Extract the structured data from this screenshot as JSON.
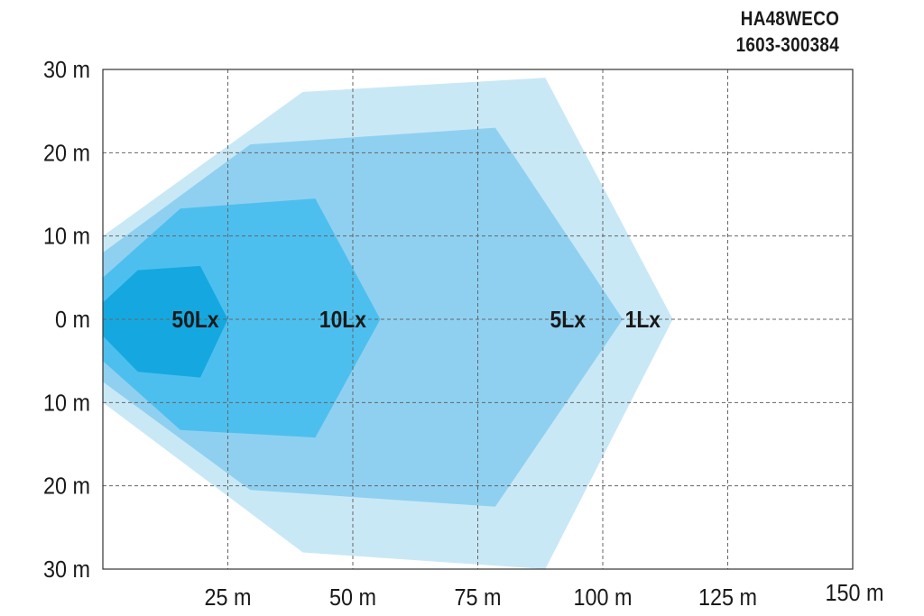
{
  "header": {
    "model": "HA48WECO",
    "serial": "1603-300384"
  },
  "chart_data": {
    "type": "area",
    "title": "",
    "xlabel": "",
    "ylabel": "",
    "xlim": [
      0,
      150
    ],
    "ylim": [
      -30,
      30
    ],
    "grid": true,
    "x_ticks": [
      {
        "value": 25,
        "label": "25 m"
      },
      {
        "value": 50,
        "label": "50 m"
      },
      {
        "value": 75,
        "label": "75 m"
      },
      {
        "value": 100,
        "label": "100 m"
      },
      {
        "value": 125,
        "label": "125 m"
      },
      {
        "value": 150,
        "label": "150 m"
      }
    ],
    "y_ticks": [
      {
        "value": 30,
        "label": "30 m"
      },
      {
        "value": 20,
        "label": "20 m"
      },
      {
        "value": 10,
        "label": "10 m"
      },
      {
        "value": 0,
        "label": "0 m"
      },
      {
        "value": -10,
        "label": "10 m"
      },
      {
        "value": -20,
        "label": "20 m"
      },
      {
        "value": -30,
        "label": "30 m"
      }
    ],
    "series": [
      {
        "name": "1Lx",
        "color": "#c9e8f6",
        "label_at": [
          108,
          0
        ],
        "outline": [
          [
            0,
            10
          ],
          [
            40,
            27.3
          ],
          [
            88.5,
            29
          ],
          [
            114,
            0
          ],
          [
            88.5,
            -30
          ],
          [
            40,
            -28
          ],
          [
            0,
            -10
          ]
        ]
      },
      {
        "name": "5Lx",
        "color": "#8fd0f0",
        "label_at": [
          93,
          0
        ],
        "outline": [
          [
            0,
            8
          ],
          [
            29.5,
            21
          ],
          [
            78.5,
            23
          ],
          [
            104,
            0
          ],
          [
            78.5,
            -22.5
          ],
          [
            29.5,
            -20.5
          ],
          [
            0,
            -7.5
          ]
        ]
      },
      {
        "name": "10Lx",
        "color": "#4dbfee",
        "label_at": [
          48,
          0
        ],
        "outline": [
          [
            0,
            5
          ],
          [
            15.5,
            13.3
          ],
          [
            42.5,
            14.5
          ],
          [
            55.5,
            0
          ],
          [
            42.5,
            -14.2
          ],
          [
            15.5,
            -13.3
          ],
          [
            0,
            -5
          ]
        ]
      },
      {
        "name": "50Lx",
        "color": "#15a8e0",
        "label_at": [
          18.5,
          0
        ],
        "outline": [
          [
            0,
            2
          ],
          [
            7,
            5.9
          ],
          [
            19.5,
            6.4
          ],
          [
            25,
            0
          ],
          [
            19.5,
            -7
          ],
          [
            7,
            -6.3
          ],
          [
            0,
            -2
          ]
        ]
      }
    ]
  }
}
